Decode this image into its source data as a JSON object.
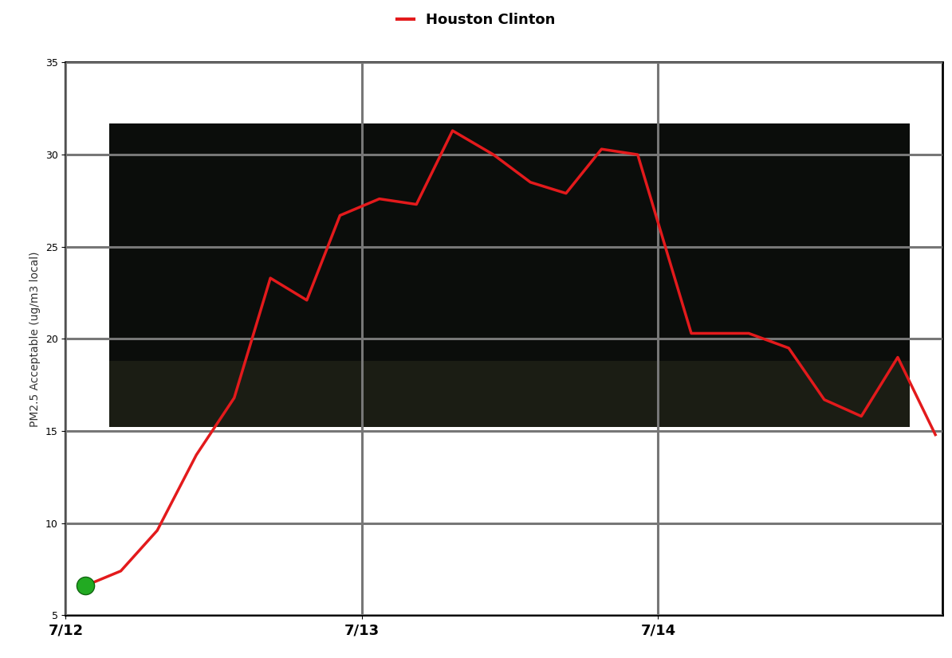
{
  "chart_data": {
    "type": "line",
    "y_label": "PM2.5 Acceptable (ug/m3 local)",
    "x": [
      0.066,
      0.186,
      0.309,
      0.441,
      0.569,
      0.691,
      0.814,
      0.926,
      1.059,
      1.184,
      1.306,
      1.444,
      1.569,
      1.689,
      1.809,
      1.931,
      2.112,
      2.306,
      2.441,
      2.561,
      2.686,
      2.809,
      2.936
    ],
    "series": [
      {
        "name": "Houston Clinton",
        "color": "#e31a1c",
        "values": [
          6.6,
          7.4,
          9.6,
          13.7,
          16.8,
          23.3,
          22.1,
          26.7,
          27.6,
          27.3,
          31.3,
          30.0,
          28.5,
          27.9,
          30.3,
          30.0,
          20.3,
          20.3,
          19.5,
          16.7,
          15.8,
          19.0,
          14.8
        ]
      }
    ],
    "xlim": [
      0,
      2.96
    ],
    "xticks": [
      {
        "value": 0,
        "label": "7/12"
      },
      {
        "value": 1,
        "label": "7/13"
      },
      {
        "value": 2,
        "label": "7/14"
      }
    ],
    "ylim": [
      5,
      35
    ],
    "yticks": [
      5,
      10,
      15,
      20,
      25,
      30,
      35
    ],
    "grid": true,
    "legend": "upper center"
  }
}
